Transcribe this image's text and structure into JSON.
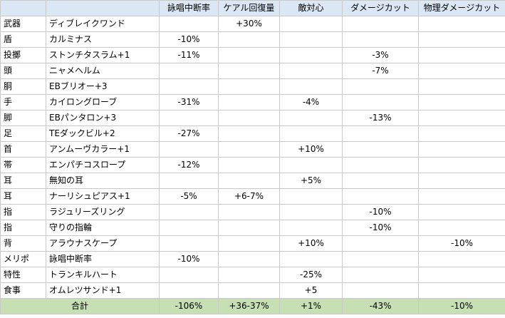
{
  "headers": [
    "",
    "",
    "詠唱中断率",
    "ケアル回復量",
    "敵対心",
    "ダメージカット",
    "物理ダメージカット"
  ],
  "rows": [
    {
      "slot": "武器",
      "item": "ディブレイクワンド",
      "vals": [
        "",
        "+30%",
        "",
        "",
        ""
      ]
    },
    {
      "slot": "盾",
      "item": "カルミナス",
      "vals": [
        "-10%",
        "",
        "",
        "",
        ""
      ]
    },
    {
      "slot": "投擲",
      "item": "ストンチタスラム+1",
      "vals": [
        "-11%",
        "",
        "",
        "-3%",
        ""
      ]
    },
    {
      "slot": "頭",
      "item": "ニャメヘルム",
      "vals": [
        "",
        "",
        "",
        "-7%",
        ""
      ]
    },
    {
      "slot": "胴",
      "item": "EBブリオー+3",
      "vals": [
        "",
        "",
        "",
        "",
        ""
      ]
    },
    {
      "slot": "手",
      "item": "カイロングローブ",
      "vals": [
        "-31%",
        "",
        "-4%",
        "",
        ""
      ]
    },
    {
      "slot": "脚",
      "item": "EBパンタロン+3",
      "vals": [
        "",
        "",
        "",
        "-13%",
        ""
      ]
    },
    {
      "slot": "足",
      "item": "TEダックビル+2",
      "vals": [
        "-27%",
        "",
        "",
        "",
        ""
      ]
    },
    {
      "slot": "首",
      "item": "アンムーヴカラー+1",
      "vals": [
        "",
        "",
        "+10%",
        "",
        ""
      ]
    },
    {
      "slot": "帯",
      "item": "エンパチコスロープ",
      "vals": [
        "-12%",
        "",
        "",
        "",
        ""
      ]
    },
    {
      "slot": "耳",
      "item": "無知の耳",
      "vals": [
        "",
        "",
        "+5%",
        "",
        ""
      ]
    },
    {
      "slot": "耳",
      "item": "ナーリシュピアス+1",
      "vals": [
        "-5%",
        "+6-7%",
        "",
        "",
        ""
      ]
    },
    {
      "slot": "指",
      "item": "ラジュリーズリング",
      "vals": [
        "",
        "",
        "",
        "-10%",
        ""
      ]
    },
    {
      "slot": "指",
      "item": "守りの指輪",
      "vals": [
        "",
        "",
        "",
        "-10%",
        ""
      ]
    },
    {
      "slot": "背",
      "item": "アラウナスケープ",
      "vals": [
        "",
        "",
        "+10%",
        "",
        "-10%"
      ]
    },
    {
      "slot": "メリポ",
      "item": "詠唱中断率",
      "vals": [
        "-10%",
        "",
        "",
        "",
        ""
      ]
    },
    {
      "slot": "特性",
      "item": "トランキルハート",
      "vals": [
        "",
        "",
        "-25%",
        "",
        ""
      ]
    },
    {
      "slot": "食事",
      "item": "オムレツサンド+1",
      "vals": [
        "",
        "",
        "+5",
        "",
        ""
      ]
    }
  ],
  "total": {
    "label": "合計",
    "vals": [
      "-106%",
      "+36-37%",
      "+1%",
      "-43%",
      "-10%"
    ]
  },
  "colors": {
    "header_bg": "#dbe7f5",
    "total_bg": "#c6e0b4",
    "grid": "#c8c8c8"
  }
}
